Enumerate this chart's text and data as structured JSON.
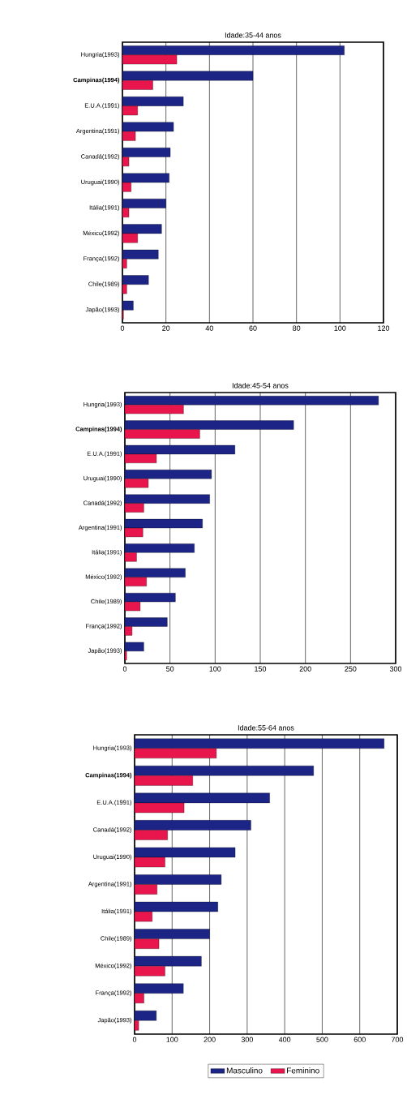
{
  "chart_data": [
    {
      "type": "bar",
      "orientation": "horizontal",
      "title": "Idade:35-44 anos",
      "categories": [
        "Hungria(1993)",
        "**Campinas(1994)**",
        "E.U.A.(1991)",
        "Argentina(1991)",
        "Canadá(1992)",
        "Uruguai(1990)",
        "Itália(1991)",
        "México(1992)",
        "França(1992)",
        "Chile(1989)",
        "Japão(1993)"
      ],
      "series": [
        {
          "color": "#1c2585",
          "values": [
            102,
            60,
            28,
            23.5,
            22,
            21.5,
            20,
            18,
            16.5,
            12,
            5
          ]
        },
        {
          "color": "#e8164c",
          "values": [
            25,
            14,
            7,
            6,
            3,
            4,
            3,
            7,
            2,
            2,
            0.5
          ]
        }
      ],
      "xlim": [
        0,
        120
      ],
      "xticks": [
        0,
        20,
        40,
        60,
        80,
        100,
        120
      ],
      "grid": "x"
    },
    {
      "type": "bar",
      "orientation": "horizontal",
      "title": "Idade:45-54 anos",
      "categories": [
        "Hungria(1993)",
        "**Campinas(1994)**",
        "E.U.A.(1991)",
        "Uruguai(1990)",
        "Canadá(1992)",
        "Argentina(1991)",
        "Itália(1991)",
        "México(1992)",
        "Chile(1989)",
        "França(1992)",
        "Japão(1993)"
      ],
      "series": [
        {
          "color": "#1c2585",
          "values": [
            281,
            187,
            122,
            96,
            94,
            86,
            77,
            67,
            56,
            47,
            21
          ]
        },
        {
          "color": "#e8164c",
          "values": [
            65,
            83,
            35,
            26,
            21,
            20,
            13,
            24,
            17,
            8,
            2
          ]
        }
      ],
      "xlim": [
        0,
        300
      ],
      "xticks": [
        0,
        50,
        100,
        150,
        200,
        250,
        300
      ],
      "grid": "x"
    },
    {
      "type": "bar",
      "orientation": "horizontal",
      "title": "Idade:55-64 anos",
      "categories": [
        "Hungria(1993)",
        "**Campinas(1994)**",
        "E.U.A.(1991)",
        "Canadá(1992)",
        "Uruguai(1990)",
        "Argentina(1991)",
        "Itália(1991)",
        "Chile(1989)",
        "México(1992)",
        "França(1992)",
        "Japão(1993)"
      ],
      "series": [
        {
          "name": "Masculino",
          "color": "#1c2585",
          "values": [
            665,
            477,
            360,
            310,
            268,
            231,
            222,
            200,
            178,
            130,
            58
          ]
        },
        {
          "name": "Feminino",
          "color": "#e8164c",
          "values": [
            218,
            155,
            132,
            88,
            81,
            60,
            47,
            65,
            81,
            25,
            11
          ]
        }
      ],
      "xlim": [
        0,
        700
      ],
      "xticks": [
        0,
        100,
        200,
        300,
        400,
        500,
        600,
        700
      ],
      "grid": "x",
      "legend": "bottom"
    }
  ]
}
